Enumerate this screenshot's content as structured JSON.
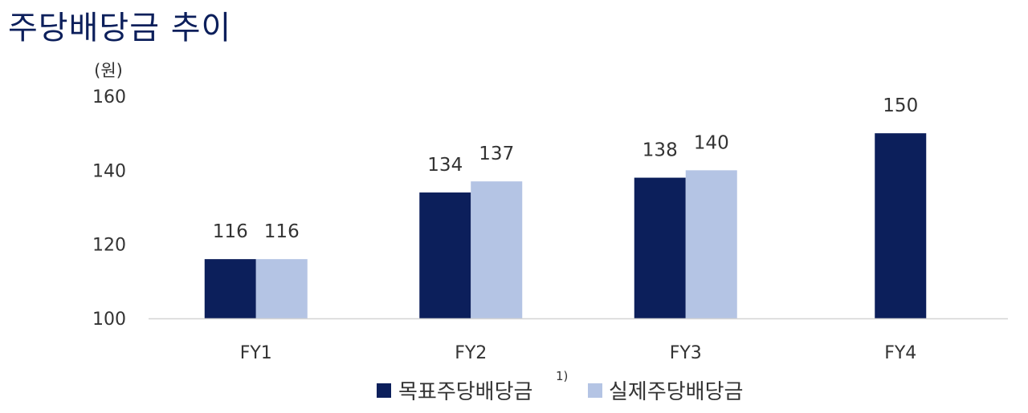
{
  "title": "주당배당금 추이",
  "colors": {
    "target": "#0c1f5b",
    "actual": "#b4c4e4"
  },
  "chart_data": {
    "type": "bar",
    "unit_label": "(원)",
    "categories": [
      "FY1",
      "FY2",
      "FY3",
      "FY4"
    ],
    "series": [
      {
        "name": "목표주당배당금",
        "footnote": "1)",
        "values": [
          116,
          134,
          138,
          150
        ]
      },
      {
        "name": "실제주당배당금",
        "values": [
          116,
          137,
          140,
          null
        ]
      }
    ],
    "y_ticks": [
      100,
      120,
      140,
      160
    ],
    "ylim": [
      100,
      160
    ],
    "grid": false,
    "legend": "bottom"
  }
}
